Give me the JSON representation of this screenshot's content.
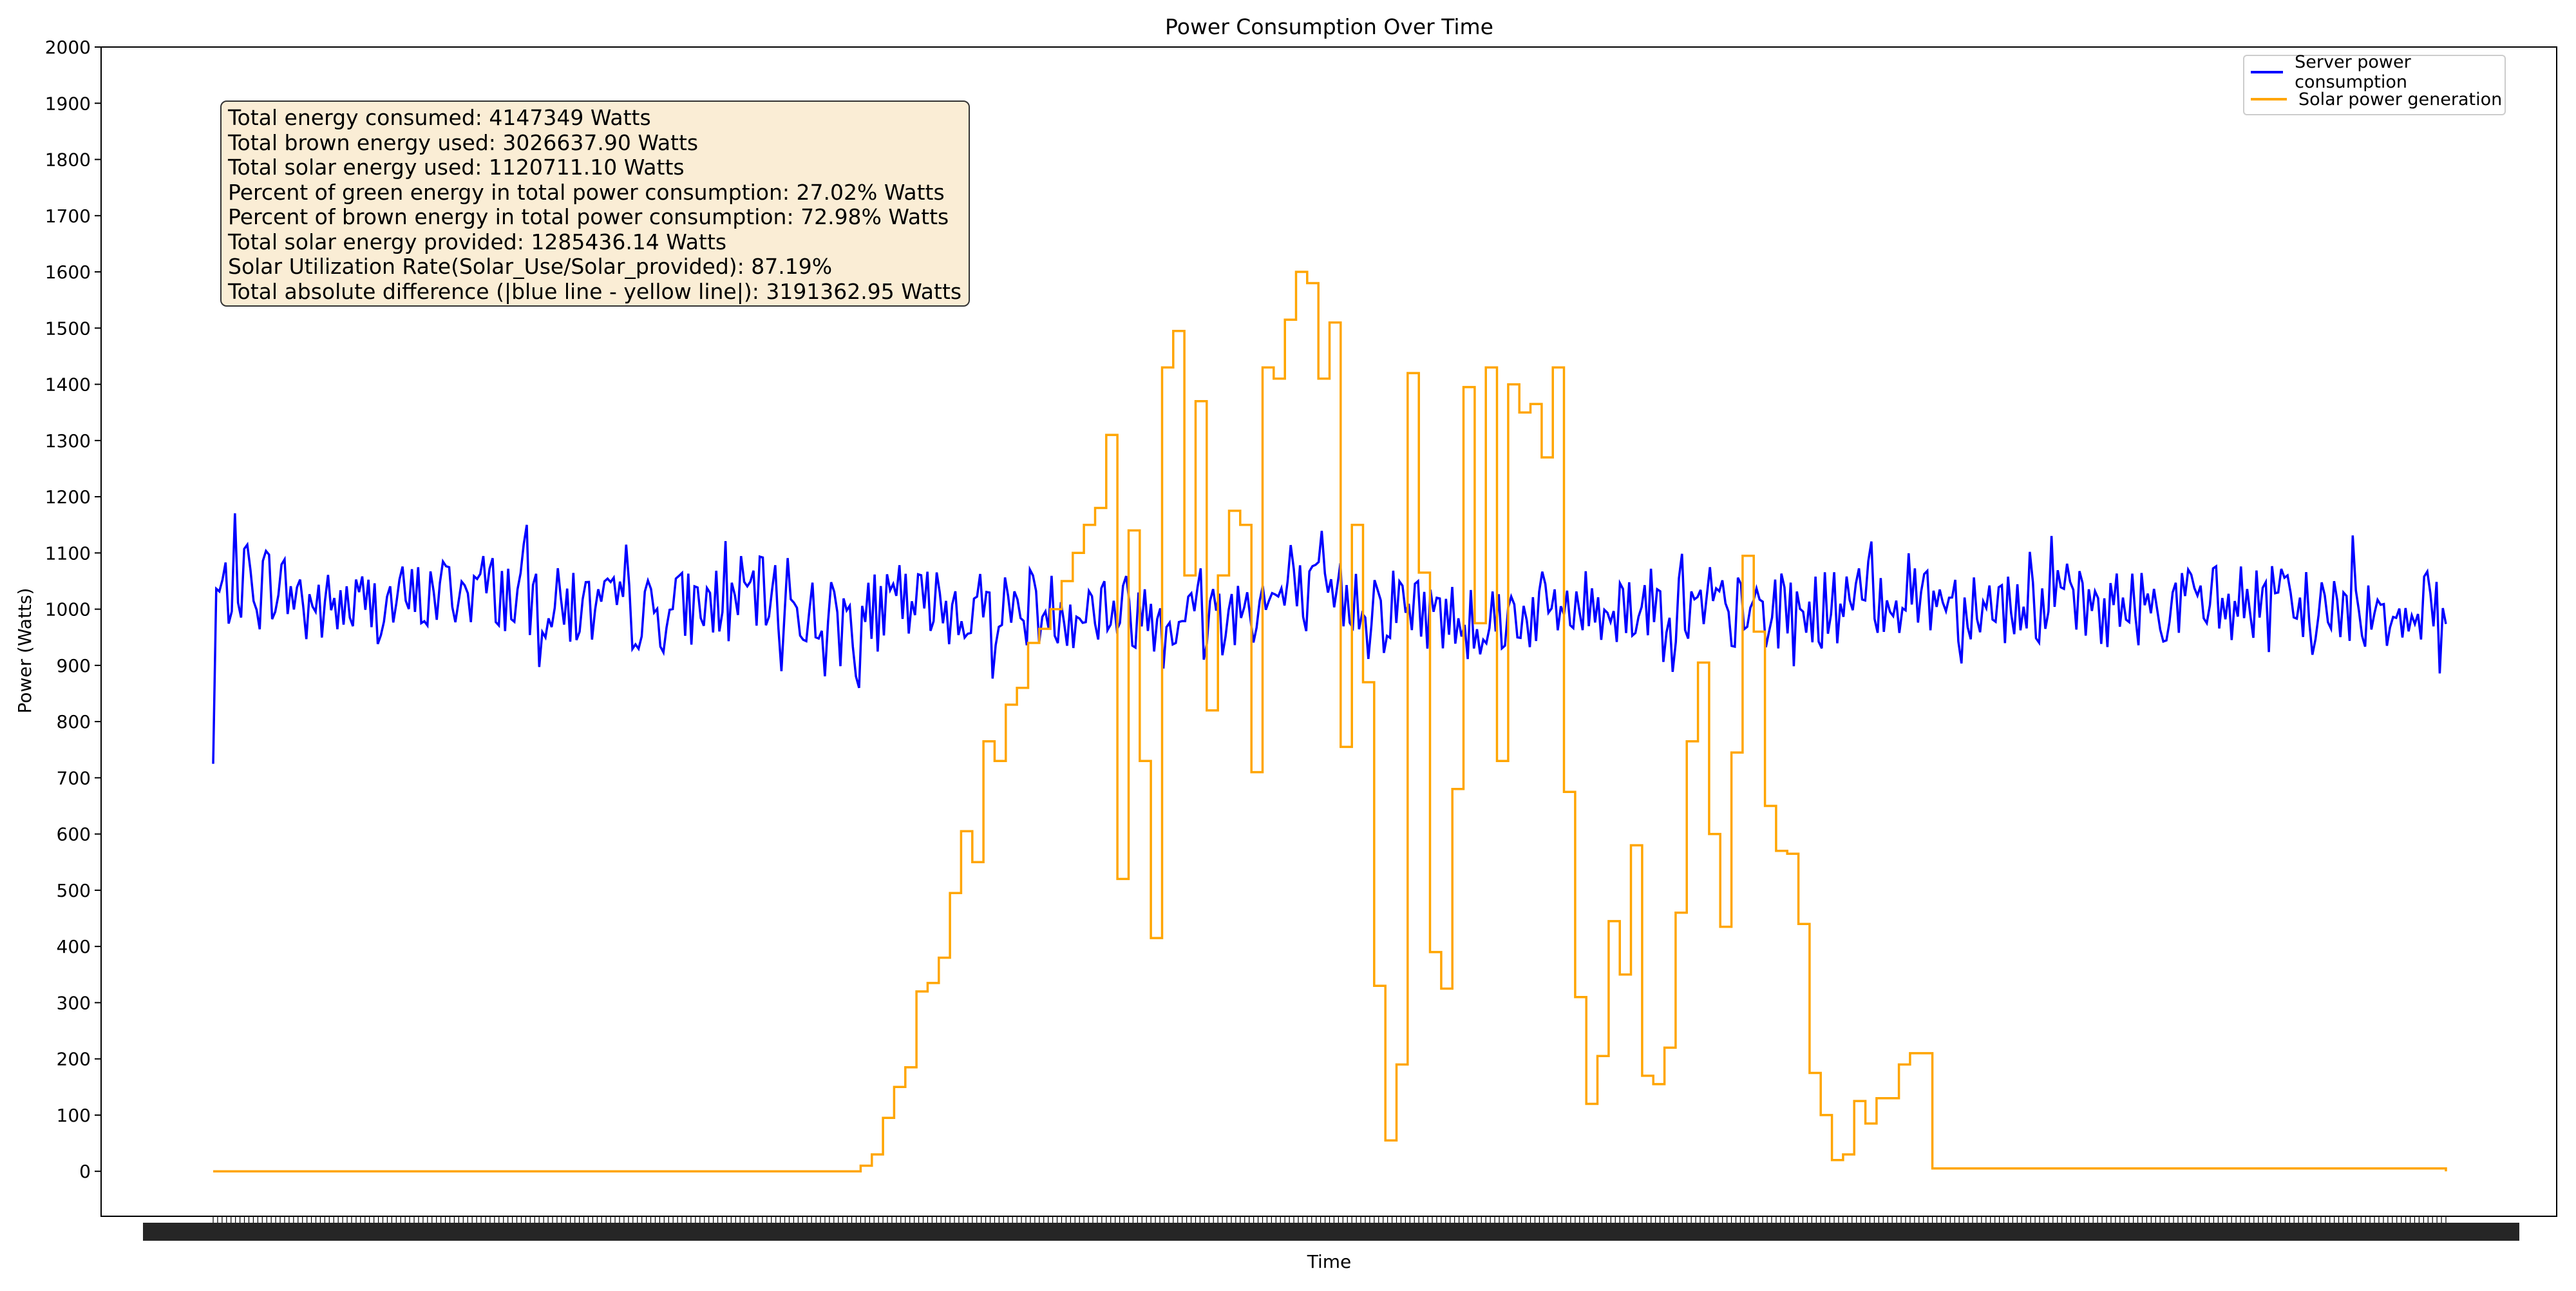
{
  "chart_data": {
    "type": "line",
    "title": "Power Consumption Over Time",
    "xlabel": "Time",
    "ylabel": "Power (Watts)",
    "ylim": [
      -80,
      2000
    ],
    "yticks": [
      0,
      100,
      200,
      300,
      400,
      500,
      600,
      700,
      800,
      900,
      1000,
      1100,
      1200,
      1300,
      1400,
      1500,
      1600,
      1700,
      1800,
      1900,
      2000
    ],
    "x_ticks_note": "dense overlapping timestamp tick labels (unreadable)",
    "grid": false,
    "legend_position": "upper right",
    "colors": {
      "server": "#0000ff",
      "solar": "#ffa500"
    },
    "series": [
      {
        "name": "Server power consumption",
        "color": "#0000ff",
        "style": "noisy",
        "x": [
          0,
          2,
          5,
          8,
          12,
          16,
          20,
          24,
          28,
          32,
          36,
          40,
          44,
          48,
          52,
          56,
          60,
          64,
          68,
          72,
          76,
          80,
          84,
          88,
          92,
          96,
          100
        ],
        "values": [
          1020,
          1060,
          1000,
          1010,
          1040,
          1000,
          990,
          1030,
          980,
          1010,
          1000,
          1000,
          990,
          1020,
          1020,
          980,
          1000,
          1010,
          990,
          1000,
          1030,
          1010,
          1000,
          1010,
          1010,
          1000,
          1000
        ],
        "amplitude": 70,
        "notes_range": "approximately 880-1215 W, starting near 725 W"
      },
      {
        "name": "Solar power generation",
        "color": "#ffa500",
        "style": "step",
        "x": [
          0,
          20,
          29.0,
          29.5,
          30.0,
          30.5,
          31.0,
          31.5,
          32.0,
          32.5,
          33.0,
          33.5,
          34.0,
          34.5,
          35.0,
          35.5,
          36.0,
          36.5,
          37.0,
          37.5,
          38.0,
          38.5,
          39.0,
          39.5,
          40.0,
          40.5,
          41.0,
          41.5,
          42.0,
          42.5,
          43.0,
          43.5,
          44.0,
          44.5,
          45.0,
          45.5,
          46.0,
          46.5,
          47.0,
          47.5,
          48.0,
          48.5,
          49.0,
          49.5,
          50.0,
          50.5,
          51.0,
          51.5,
          52.0,
          52.5,
          53.0,
          53.5,
          54.0,
          54.5,
          55.0,
          55.5,
          56.0,
          56.5,
          57.0,
          57.5,
          58.0,
          58.5,
          59.0,
          59.5,
          60.0,
          60.5,
          61.0,
          61.5,
          62.0,
          62.5,
          63.0,
          63.5,
          64.0,
          64.5,
          65.0,
          65.5,
          66.0,
          66.5,
          67.0,
          67.5,
          68.0,
          68.5,
          69.0,
          69.5,
          70.0,
          70.5,
          71.0,
          71.5,
          72.0,
          72.5,
          73.0,
          73.5,
          74.0,
          74.5,
          75.0,
          75.5,
          76.0,
          77.0,
          100
        ],
        "values": [
          0,
          0,
          10,
          30,
          95,
          150,
          185,
          320,
          335,
          380,
          495,
          605,
          550,
          765,
          730,
          830,
          860,
          940,
          965,
          1000,
          1050,
          1100,
          1150,
          1180,
          1310,
          520,
          1140,
          730,
          415,
          1430,
          1495,
          1060,
          1370,
          820,
          1060,
          1175,
          1150,
          710,
          1430,
          1410,
          1515,
          1600,
          1580,
          1410,
          1510,
          755,
          1150,
          870,
          330,
          55,
          190,
          1420,
          1065,
          390,
          325,
          680,
          1395,
          975,
          1430,
          730,
          1400,
          1350,
          1365,
          1270,
          1430,
          675,
          310,
          120,
          205,
          445,
          350,
          580,
          170,
          155,
          220,
          460,
          765,
          905,
          600,
          435,
          745,
          1095,
          960,
          650,
          570,
          565,
          440,
          175,
          100,
          20,
          30,
          125,
          85,
          130,
          130,
          190,
          210,
          5,
          0
        ]
      }
    ],
    "annotation_lines": [
      "Total energy consumed: 4147349 Watts",
      "Total brown energy used: 3026637.90 Watts",
      "Total solar energy used: 1120711.10 Watts",
      "Percent of green energy in total power consumption: 27.02% Watts",
      "Percent of brown energy in total power consumption: 72.98% Watts",
      "Total solar energy provided: 1285436.14 Watts",
      "Solar Utilization Rate(Solar_Use/Solar_provided): 87.19%",
      "Total absolute difference (|blue line - yellow line|): 3191362.95 Watts"
    ]
  }
}
